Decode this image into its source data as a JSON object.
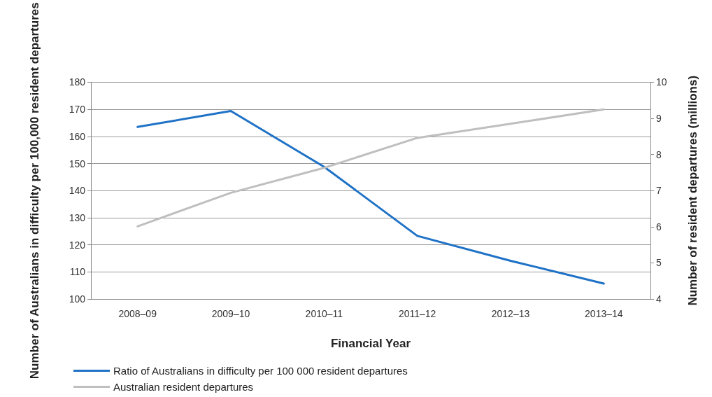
{
  "chart_data": {
    "type": "line",
    "xlabel": "Financial Year",
    "ylabel": "Number of Australians in difficulty per 100,000 resident departures",
    "y2label": "Number of resident departures (millions)",
    "categories": [
      "2008–09",
      "2009–10",
      "2010–11",
      "2011–12",
      "2012–13",
      "2013–14"
    ],
    "series": [
      {
        "name": "Ratio of Australians in difficulty per 100 000 resident departures",
        "color": "#1f72c6",
        "values": [
          163.5,
          169.4,
          148.8,
          123.3,
          114.1,
          105.7
        ]
      },
      {
        "name": "Australian resident departures",
        "color": "#bfbfbf",
        "axis": "y2",
        "values": [
          6.01,
          6.94,
          7.63,
          8.46,
          8.85,
          9.25
        ]
      }
    ],
    "ylim": [
      100,
      180
    ],
    "yticks": [
      100,
      110,
      120,
      130,
      140,
      150,
      160,
      170,
      180
    ],
    "y2lim": [
      4,
      10
    ],
    "y2ticks": [
      4,
      5,
      6,
      7,
      8,
      9,
      10
    ],
    "grid": "y",
    "legend": "bottom left",
    "marker": "none",
    "line_style": "solid"
  }
}
